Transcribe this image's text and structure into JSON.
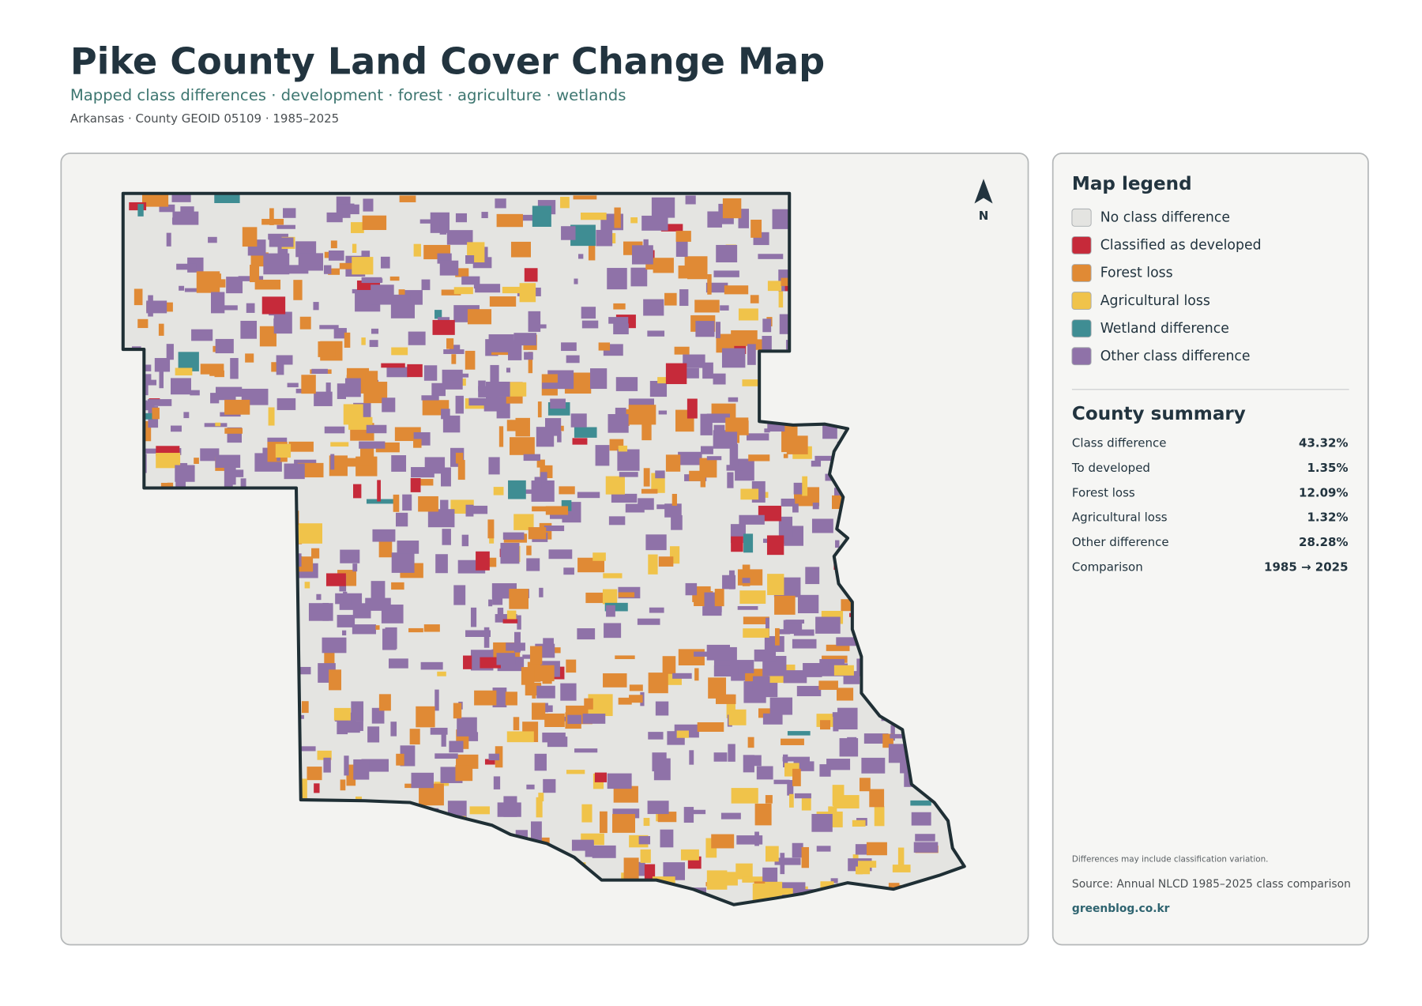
{
  "header": {
    "title": "Pike County Land Cover Change Map",
    "subtitle": "Mapped class differences · development · forest · agriculture · wetlands",
    "meta": "Arkansas · County GEOID 05109 · 1985–2025"
  },
  "map": {
    "north_label": "N"
  },
  "legend": {
    "title": "Map legend",
    "items": [
      {
        "label": "No class difference",
        "color": "#e4e4e1"
      },
      {
        "label": "Classified as developed",
        "color": "#c62a3a"
      },
      {
        "label": "Forest loss",
        "color": "#e08a35"
      },
      {
        "label": "Agricultural loss",
        "color": "#f0c34a"
      },
      {
        "label": "Wetland difference",
        "color": "#3f8d93"
      },
      {
        "label": "Other class difference",
        "color": "#8f72a8"
      }
    ]
  },
  "summary": {
    "title": "County summary",
    "rows": [
      {
        "label": "Class difference",
        "value": "43.32%"
      },
      {
        "label": "To developed",
        "value": "1.35%"
      },
      {
        "label": "Forest loss",
        "value": "12.09%"
      },
      {
        "label": "Agricultural loss",
        "value": "1.32%"
      },
      {
        "label": "Other difference",
        "value": "28.28%"
      },
      {
        "label": "Comparison",
        "value": "1985 → 2025"
      }
    ]
  },
  "footer": {
    "note": "Differences may include classification variation.",
    "source": "Source: Annual NLCD 1985–2025 class comparison",
    "credit": "greenblog.co.kr"
  }
}
